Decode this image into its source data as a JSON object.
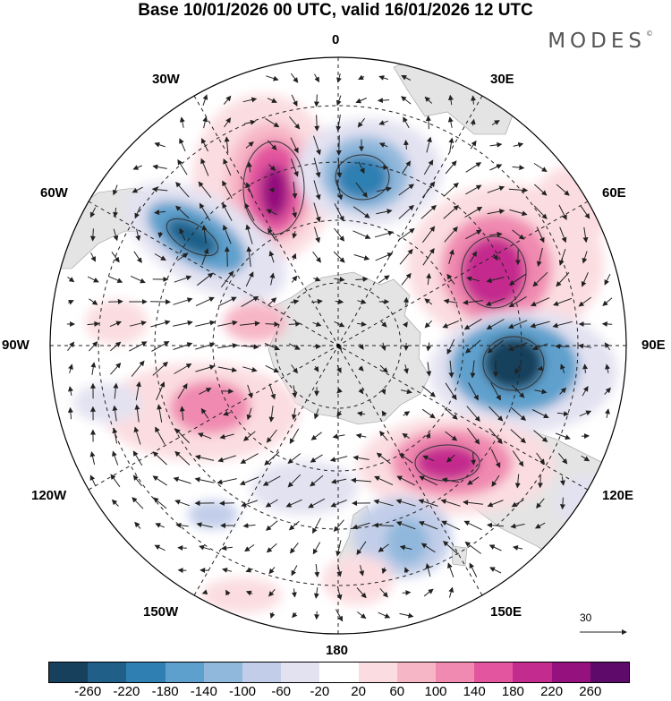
{
  "header": {
    "title": "Base 10/01/2026 00 UTC, valid 16/01/2026 12 UTC",
    "brand": "MODES",
    "brand_mark": "©"
  },
  "map": {
    "projection": "south polar stereographic",
    "longitude_labels": {
      "top": "0",
      "top_right": "30E",
      "right_upper": "60E",
      "right": "90E",
      "right_lower": "120E",
      "bottom_right": "150E",
      "bottom": "180",
      "bottom_left": "150W",
      "left_lower": "120W",
      "left": "90W",
      "left_upper": "60W",
      "top_left": "30W"
    },
    "reference_vector": "30"
  },
  "colorbar": {
    "colors": [
      "#17405c",
      "#1f5f88",
      "#2f7fb2",
      "#5ea0cd",
      "#90b8dc",
      "#c2cee9",
      "#e3e2f1",
      "#ffffff",
      "#fbdde1",
      "#f7b6c6",
      "#f08ab0",
      "#e3559f",
      "#c42b8e",
      "#94117e",
      "#5e0a6b"
    ],
    "labels": [
      "-260",
      "-220",
      "-180",
      "-140",
      "-100",
      "-60",
      "-20",
      "20",
      "60",
      "100",
      "140",
      "180",
      "220",
      "260"
    ]
  }
}
